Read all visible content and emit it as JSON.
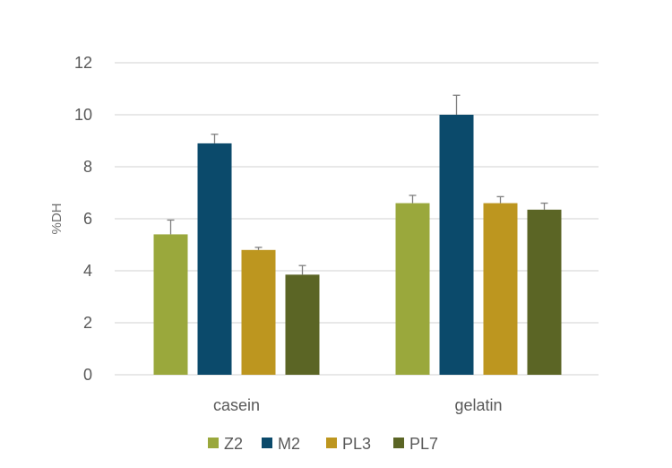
{
  "chart_data": {
    "type": "bar",
    "title": "",
    "xlabel": "",
    "ylabel": "%DH",
    "ylim": [
      0,
      12
    ],
    "yticks": [
      0,
      2,
      4,
      6,
      8,
      10,
      12
    ],
    "grid": true,
    "legend_position": "bottom",
    "categories": [
      "casein",
      "gelatin"
    ],
    "series": [
      {
        "name": "Z2",
        "color": "#9aa83c",
        "values": [
          5.4,
          6.6
        ],
        "errors": [
          0.55,
          0.3
        ]
      },
      {
        "name": "M2",
        "color": "#0b4a6b",
        "values": [
          8.9,
          10.0
        ],
        "errors": [
          0.35,
          0.75
        ]
      },
      {
        "name": "PL3",
        "color": "#bd961f",
        "values": [
          4.8,
          6.6
        ],
        "errors": [
          0.1,
          0.25
        ]
      },
      {
        "name": "PL7",
        "color": "#5b6525",
        "values": [
          3.85,
          6.35
        ],
        "errors": [
          0.35,
          0.25
        ]
      }
    ]
  }
}
